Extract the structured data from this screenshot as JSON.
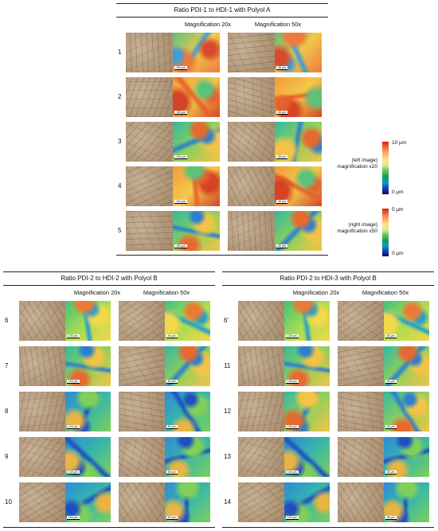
{
  "top_panel": {
    "title": "Ratio PDI-1 to HDI-1 with Polyol A",
    "col_headers": [
      "Magnification 20x",
      "Magnification 50x"
    ],
    "rows": [
      {
        "label": "1",
        "scale": [
          "100 µm",
          "50 µm"
        ],
        "tone": "light"
      },
      {
        "label": "2",
        "scale": [
          "100 µm",
          "50 µm"
        ],
        "tone": "warm"
      },
      {
        "label": "3",
        "scale": [
          "100 µm",
          "50 µm"
        ],
        "tone": "mixed"
      },
      {
        "label": "4",
        "scale": [
          "100 µm",
          "50 µm"
        ],
        "tone": "warm"
      },
      {
        "label": "5",
        "scale": [
          "100 µm",
          "50 µm"
        ],
        "tone": "mixed"
      }
    ]
  },
  "legend": {
    "left_label": [
      "(left image)",
      "magnification x20"
    ],
    "left_max": "10 µm",
    "left_min": "0 µm",
    "right_label": [
      "(right image)",
      "magnification x50"
    ],
    "right_max": "5 µm",
    "right_min": "0 µm"
  },
  "bottom_left_panel": {
    "title": "Ratio PDI-2 to HDI-2 with Polyol B",
    "col_headers": [
      "Magnification 20x",
      "Magnification 50x"
    ],
    "rows": [
      {
        "label": "6",
        "scale": [
          "100 µm",
          "50 µm"
        ],
        "tone": "green"
      },
      {
        "label": "7",
        "scale": [
          "100 µm",
          "50 µm"
        ],
        "tone": "mixed"
      },
      {
        "label": "8",
        "scale": [
          "100 µm",
          "50 µm"
        ],
        "tone": "cool"
      },
      {
        "label": "9",
        "scale": [
          "100 µm",
          "50 µm"
        ],
        "tone": "cool"
      },
      {
        "label": "10",
        "scale": [
          "100 µm",
          "50 µm"
        ],
        "tone": "cool"
      }
    ]
  },
  "bottom_right_panel": {
    "title": "Ratio PDI-2 to HDI-3 with Polyol B",
    "col_headers": [
      "Magnification 20x",
      "Magnification 50x"
    ],
    "rows": [
      {
        "label": "6'",
        "scale": [
          "100 µm",
          "50 µm"
        ],
        "tone": "green"
      },
      {
        "label": "11",
        "scale": [
          "100 µm",
          "50 µm"
        ],
        "tone": "mixed"
      },
      {
        "label": "12",
        "scale": [
          "100 µm",
          "50 µm"
        ],
        "tone": "mixed"
      },
      {
        "label": "13",
        "scale": [
          "100 µm",
          "50 µm"
        ],
        "tone": "cool"
      },
      {
        "label": "14",
        "scale": [
          "100 µm",
          "50 µm"
        ],
        "tone": "cool"
      }
    ]
  },
  "colors": {
    "rule": "#222222",
    "micrograph_light": "#c9b39a",
    "micrograph_dark": "#8a7358"
  }
}
